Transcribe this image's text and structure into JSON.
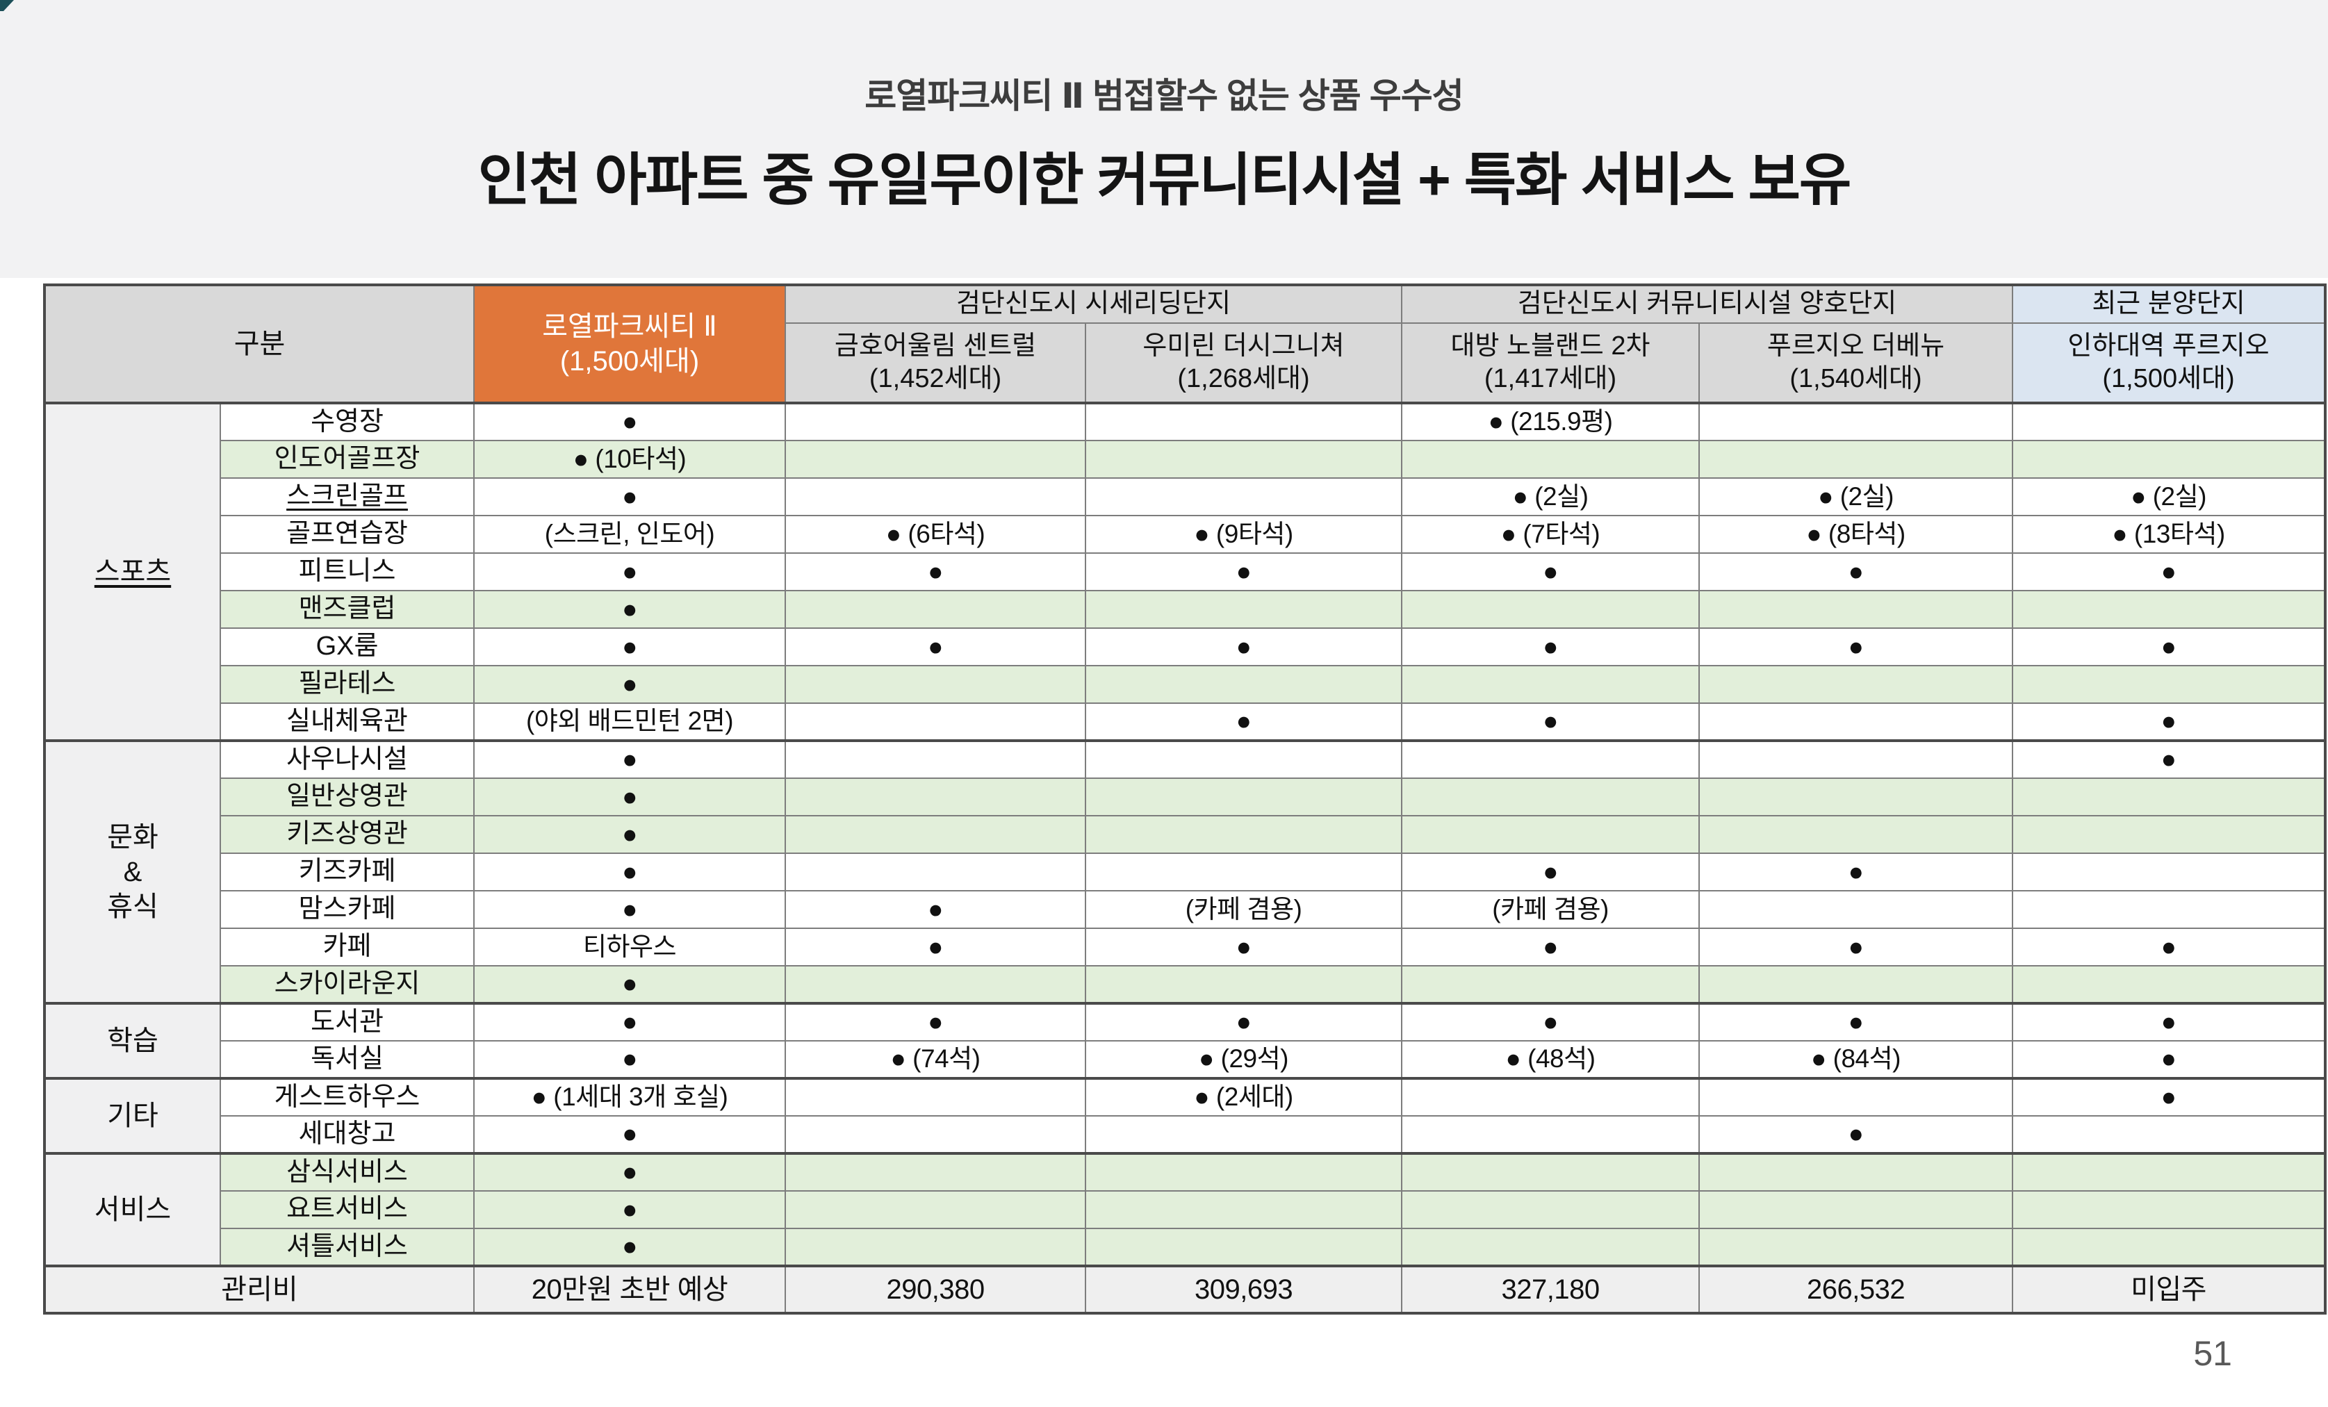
{
  "page": {
    "number": "51"
  },
  "titles": {
    "subtitle": "로열파크씨티 Ⅱ 범접할수 없는 상품 우수성",
    "title": "인천 아파트 중 유일무이한 커뮤니티시설 + 특화 서비스 보유"
  },
  "colors": {
    "highlight_orange": "#e0763a",
    "highlight_blue": "#dbe5f1",
    "row_green": "#e2efda",
    "header_gray": "#d9d9d9",
    "accent_teal": "#1c4f58"
  },
  "table": {
    "corner_label": "구분",
    "highlight_column": {
      "name": "로열파크씨티 Ⅱ",
      "units": "(1,500세대)"
    },
    "groups": [
      {
        "label": "검단신도시 시세리딩단지",
        "highlight": false,
        "columns": [
          {
            "name": "금호어울림 센트럴",
            "units": "(1,452세대)"
          },
          {
            "name": "우미린 더시그니쳐",
            "units": "(1,268세대)"
          }
        ]
      },
      {
        "label": "검단신도시 커뮤니티시설 양호단지",
        "highlight": false,
        "columns": [
          {
            "name": "대방 노블랜드 2차",
            "units": "(1,417세대)"
          },
          {
            "name": "푸르지오 더베뉴",
            "units": "(1,540세대)"
          }
        ]
      },
      {
        "label": "최근 분양단지",
        "highlight": true,
        "columns": [
          {
            "name": "인하대역 푸르지오",
            "units": "(1,500세대)"
          }
        ]
      }
    ],
    "sections": [
      {
        "category": "스포츠",
        "underline": true,
        "rows": [
          {
            "facility": "수영장",
            "green": false,
            "cells": [
              "●",
              "",
              "",
              "● (215.9평)",
              "",
              ""
            ]
          },
          {
            "facility": "인도어골프장",
            "green": true,
            "cells": [
              "● (10타석)",
              "",
              "",
              "",
              "",
              ""
            ]
          },
          {
            "facility": "스크린골프",
            "green": false,
            "underline": true,
            "cells": [
              "●",
              "",
              "",
              "● (2실)",
              "● (2실)",
              "● (2실)"
            ]
          },
          {
            "facility": "골프연습장",
            "green": false,
            "cells": [
              "(스크린, 인도어)",
              "● (6타석)",
              "● (9타석)",
              "● (7타석)",
              "● (8타석)",
              "● (13타석)"
            ]
          },
          {
            "facility": "피트니스",
            "green": false,
            "cells": [
              "●",
              "●",
              "●",
              "●",
              "●",
              "●"
            ]
          },
          {
            "facility": "맨즈클럽",
            "green": true,
            "cells": [
              "●",
              "",
              "",
              "",
              "",
              ""
            ]
          },
          {
            "facility": "GX룸",
            "green": false,
            "cells": [
              "●",
              "●",
              "●",
              "●",
              "●",
              "●"
            ]
          },
          {
            "facility": "필라테스",
            "green": true,
            "cells": [
              "●",
              "",
              "",
              "",
              "",
              ""
            ]
          },
          {
            "facility": "실내체육관",
            "green": false,
            "cells": [
              "(야외 배드민턴 2면)",
              "",
              "●",
              "●",
              "",
              "●"
            ]
          }
        ]
      },
      {
        "category": "문화\n&\n휴식",
        "underline": false,
        "rows": [
          {
            "facility": "사우나시설",
            "green": false,
            "cells": [
              "●",
              "",
              "",
              "",
              "",
              "●"
            ]
          },
          {
            "facility": "일반상영관",
            "green": true,
            "cells": [
              "●",
              "",
              "",
              "",
              "",
              ""
            ]
          },
          {
            "facility": "키즈상영관",
            "green": true,
            "cells": [
              "●",
              "",
              "",
              "",
              "",
              ""
            ]
          },
          {
            "facility": "키즈카페",
            "green": false,
            "cells": [
              "●",
              "",
              "",
              "●",
              "●",
              ""
            ]
          },
          {
            "facility": "맘스카페",
            "green": false,
            "cells": [
              "●",
              "●",
              "(카페 겸용)",
              "(카페 겸용)",
              "",
              ""
            ]
          },
          {
            "facility": "카페",
            "green": false,
            "cells": [
              "티하우스",
              "●",
              "●",
              "●",
              "●",
              "●"
            ]
          },
          {
            "facility": "스카이라운지",
            "green": true,
            "cells": [
              "●",
              "",
              "",
              "",
              "",
              ""
            ]
          }
        ]
      },
      {
        "category": "학습",
        "underline": false,
        "rows": [
          {
            "facility": "도서관",
            "green": false,
            "cells": [
              "●",
              "●",
              "●",
              "●",
              "●",
              "●"
            ]
          },
          {
            "facility": "독서실",
            "green": false,
            "cells": [
              "●",
              "● (74석)",
              "● (29석)",
              "● (48석)",
              "● (84석)",
              "●"
            ]
          }
        ]
      },
      {
        "category": "기타",
        "underline": false,
        "rows": [
          {
            "facility": "게스트하우스",
            "green": false,
            "cells": [
              "● (1세대 3개 호실)",
              "",
              "● (2세대)",
              "",
              "",
              "●"
            ]
          },
          {
            "facility": "세대창고",
            "green": false,
            "cells": [
              "●",
              "",
              "",
              "",
              "●",
              ""
            ]
          }
        ]
      },
      {
        "category": "서비스",
        "underline": false,
        "rows": [
          {
            "facility": "삼식서비스",
            "green": true,
            "cells": [
              "●",
              "",
              "",
              "",
              "",
              ""
            ]
          },
          {
            "facility": "요트서비스",
            "green": true,
            "cells": [
              "●",
              "",
              "",
              "",
              "",
              ""
            ]
          },
          {
            "facility": "셔틀서비스",
            "green": true,
            "cells": [
              "●",
              "",
              "",
              "",
              "",
              ""
            ]
          }
        ]
      }
    ],
    "footer": {
      "label": "관리비",
      "cells": [
        "20만원 초반 예상",
        "290,380",
        "309,693",
        "327,180",
        "266,532",
        "미입주"
      ]
    }
  }
}
